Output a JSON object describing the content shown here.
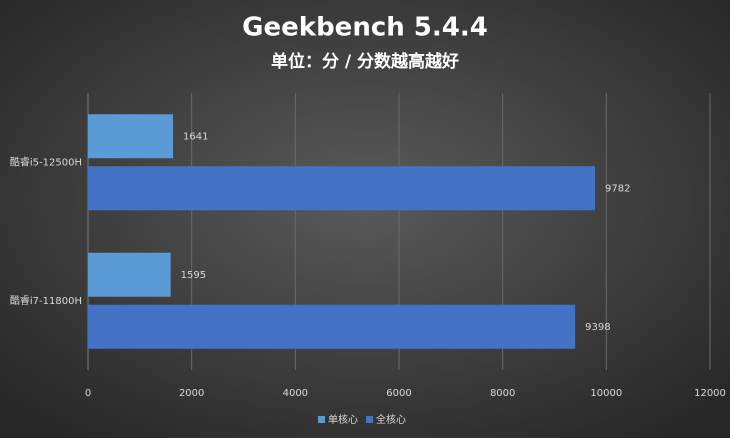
{
  "chart_data": {
    "type": "hbar",
    "title": "Geekbench 5.4.4",
    "subtitle": "单位：分 / 分数越高越好",
    "categories": [
      "酷睿i5-12500H",
      "酷睿i7-11800H"
    ],
    "series": [
      {
        "name": "单核心",
        "color": "#5b9bd5",
        "values": [
          1641,
          1595
        ]
      },
      {
        "name": "全核心",
        "color": "#4472c4",
        "values": [
          9782,
          9398
        ]
      }
    ],
    "xlim": [
      0,
      12000
    ],
    "xticks": [
      0,
      2000,
      4000,
      6000,
      8000,
      10000,
      12000
    ],
    "grid": true
  }
}
